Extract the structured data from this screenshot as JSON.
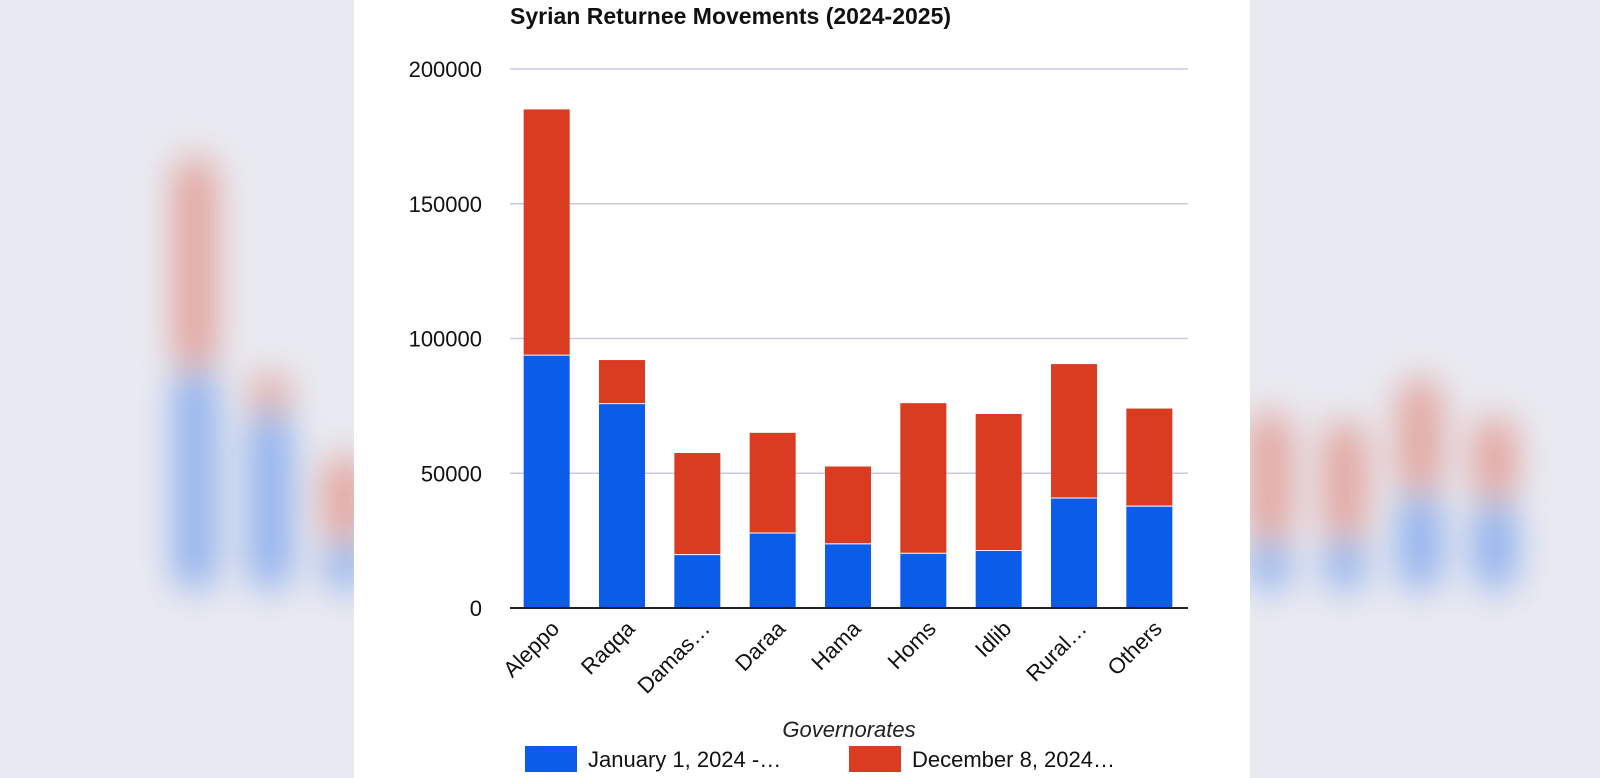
{
  "chart_data": {
    "type": "bar",
    "stacked": true,
    "title": "Syrian Returnee Movements (2024-2025)",
    "xlabel": "Governorates",
    "ylabel": "",
    "ylim": [
      0,
      200000
    ],
    "yticks": [
      0,
      50000,
      100000,
      150000,
      200000
    ],
    "ytick_labels": [
      "0",
      "50000",
      "100000",
      "150000",
      "200000"
    ],
    "grid": true,
    "legend_position": "bottom",
    "categories": [
      "Aleppo",
      "Raqqa",
      "Damas…",
      "Daraa",
      "Hama",
      "Homs",
      "Idlib",
      "Rural…",
      "Others"
    ],
    "series": [
      {
        "name": "January 1, 2024 -…",
        "color": "#0b5ce8",
        "values": [
          94000,
          76000,
          20000,
          28000,
          24000,
          20500,
          21500,
          41000,
          38000
        ]
      },
      {
        "name": "December 8, 2024…",
        "color": "#d93c20",
        "values": [
          91000,
          16000,
          37500,
          37000,
          28500,
          55500,
          50500,
          49500,
          36000
        ]
      }
    ]
  }
}
